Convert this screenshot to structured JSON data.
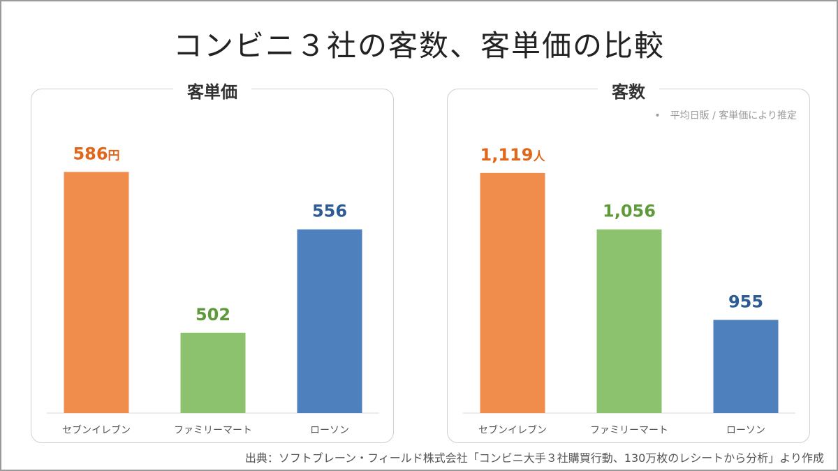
{
  "title": "コンビニ３社の客数、客単価の比較",
  "chart_data": [
    {
      "type": "bar",
      "title": "客単価",
      "categories": [
        "セブンイレブン",
        "ファミリーマート",
        "ローソン"
      ],
      "values": [
        586,
        502,
        556
      ],
      "value_labels": [
        "586",
        "502",
        "556"
      ],
      "unit": "円",
      "ylim": [
        460,
        600
      ],
      "colors": [
        "#F08D4D",
        "#8CC26E",
        "#4F80BE"
      ],
      "label_colors": [
        "#E0661A",
        "#5E9A3A",
        "#2C5A92"
      ],
      "grid": false,
      "legend": "none"
    },
    {
      "type": "bar",
      "title": "客数",
      "note": "•　平均日販 / 客単価により推定",
      "categories": [
        "セブンイレブン",
        "ファミリーマート",
        "ローソン"
      ],
      "values": [
        1119,
        1056,
        955
      ],
      "value_labels": [
        "1,119",
        "1,056",
        "955"
      ],
      "unit": "人",
      "ylim": [
        851,
        1150
      ],
      "colors": [
        "#F08D4D",
        "#8CC26E",
        "#4F80BE"
      ],
      "label_colors": [
        "#E0661A",
        "#5E9A3A",
        "#2C5A92"
      ],
      "grid": false,
      "legend": "none"
    }
  ],
  "source": "出典：ソフトブレーン・フィールド株式会社「コンビニ大手３社購買行動、130万枚のレシートから分析」より作成"
}
